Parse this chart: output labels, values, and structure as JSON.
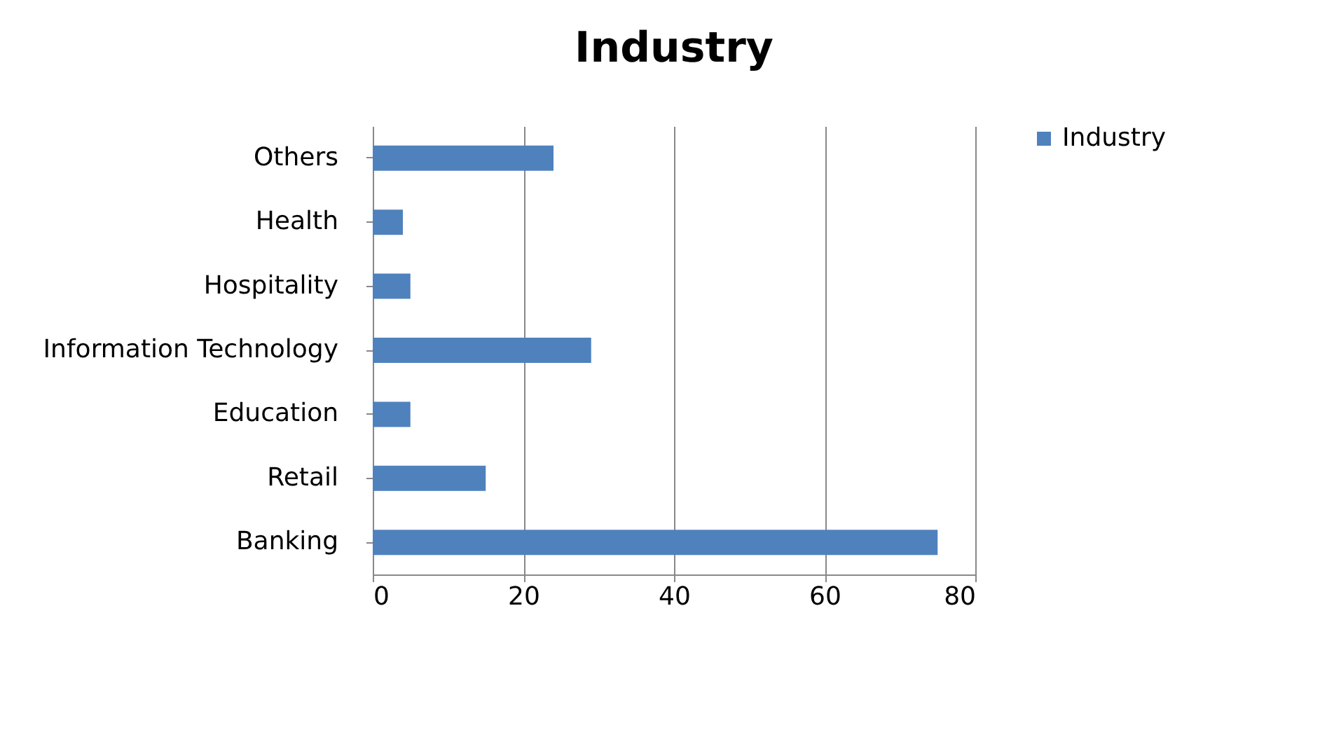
{
  "chart_data": {
    "type": "bar",
    "title": "Industry",
    "orientation": "horizontal",
    "categories": [
      "Others",
      "Health",
      "Hospitality",
      "Information Technology",
      "Education",
      "Retail",
      "Banking"
    ],
    "series": [
      {
        "name": "Industry",
        "color": "#4f81bd",
        "values": [
          24,
          4,
          5,
          29,
          5,
          15,
          75
        ]
      }
    ],
    "xlim": [
      0,
      80
    ],
    "xticks": [
      0,
      20,
      40,
      60,
      80
    ],
    "grid": "x",
    "legend": "right"
  }
}
